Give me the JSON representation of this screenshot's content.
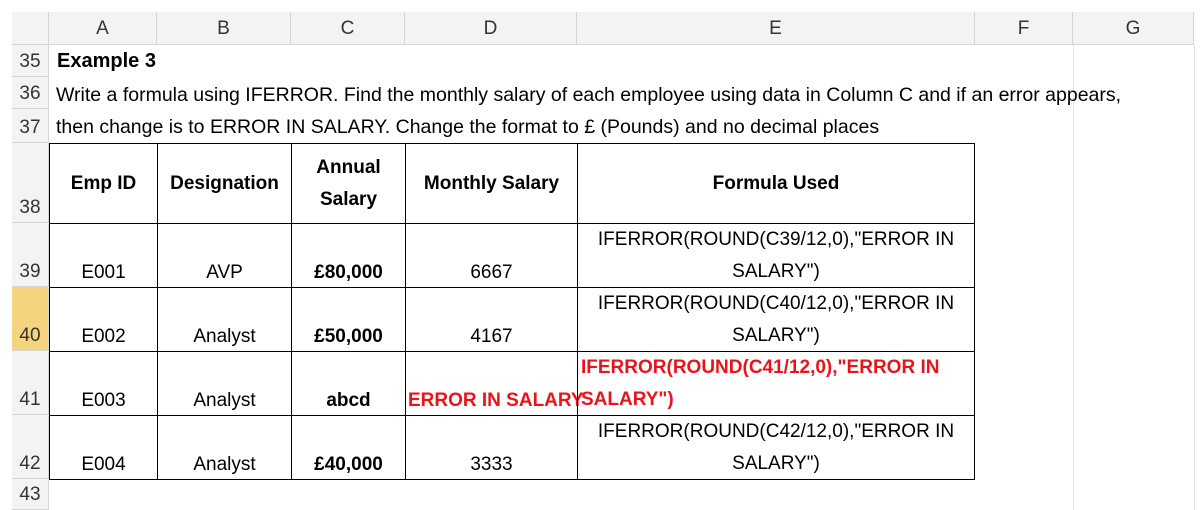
{
  "columns": [
    "A",
    "B",
    "C",
    "D",
    "E",
    "F",
    "G"
  ],
  "rows": [
    "35",
    "36",
    "37",
    "38",
    "39",
    "40",
    "41",
    "42",
    "43"
  ],
  "title": "Example 3",
  "instructions": [
    "Write a formula using IFERROR. Find the monthly salary of each employee using data in Column C and if an error appears,",
    "then change is to ERROR IN SALARY. Change the format to £ (Pounds) and no decimal places"
  ],
  "table": {
    "headers": {
      "emp_id": "Emp ID",
      "designation": "Designation",
      "annual_salary_line1": "Annual",
      "annual_salary_line2": "Salary",
      "monthly_salary": "Monthly Salary",
      "formula_used": "Formula Used"
    },
    "rows": [
      {
        "emp_id": "E001",
        "designation": "AVP",
        "annual": "£80,000",
        "monthly": "6667",
        "formula_line1": "IFERROR(ROUND(C39/12,0),\"ERROR IN",
        "formula_line2": "SALARY\")"
      },
      {
        "emp_id": "E002",
        "designation": "Analyst",
        "annual": "£50,000",
        "monthly": "4167",
        "formula_line1": "IFERROR(ROUND(C40/12,0),\"ERROR IN",
        "formula_line2": "SALARY\")"
      },
      {
        "emp_id": "E003",
        "designation": "Analyst",
        "annual": "abcd",
        "monthly": "ERROR IN SALARY",
        "formula_line1": "IFERROR(ROUND(C41/12,0),\"ERROR IN",
        "formula_line2": "SALARY\")"
      },
      {
        "emp_id": "E004",
        "designation": "Analyst",
        "annual": "£40,000",
        "monthly": "3333",
        "formula_line1": "IFERROR(ROUND(C42/12,0),\"ERROR IN",
        "formula_line2": "SALARY\")"
      }
    ]
  },
  "selected_row": "40",
  "colors": {
    "header_bg": "#f3f3f3",
    "selected_row_bg": "#f6d47f",
    "error_red": "#e8141b"
  }
}
